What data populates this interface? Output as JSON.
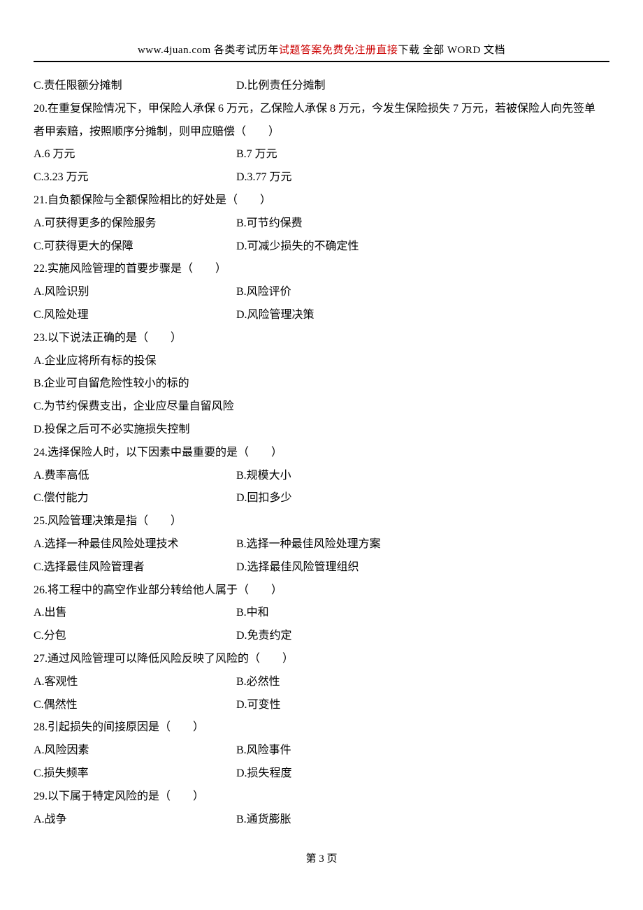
{
  "header": {
    "site": "www.4juan.com",
    "text1": " 各类考试历年",
    "red": "试题答案免费免注册直接",
    "text2": "下载 全部 WORD 文档"
  },
  "content": {
    "q19_opts": {
      "c": "C.责任限额分摊制",
      "d": "D.比例责任分摊制"
    },
    "q20": {
      "stem1": "20.在重复保险情况下，甲保险人承保 6 万元，乙保险人承保 8 万元，今发生保险损失 7 万元，若被保险人向先签单",
      "stem2": "者甲索赔，按照顺序分摊制，则甲应赔偿（　　）",
      "a": "A.6 万元",
      "b": "B.7 万元",
      "c": "C.3.23 万元",
      "d": "D.3.77 万元"
    },
    "q21": {
      "stem": "21.自负额保险与全额保险相比的好处是（　　）",
      "a": "A.可获得更多的保险服务",
      "b": "B.可节约保费",
      "c": "C.可获得更大的保障",
      "d": "D.可减少损失的不确定性"
    },
    "q22": {
      "stem": "22.实施风险管理的首要步骤是（　　）",
      "a": "A.风险识别",
      "b": "B.风险评价",
      "c": "C.风险处理",
      "d": "D.风险管理决策"
    },
    "q23": {
      "stem": "23.以下说法正确的是（　　）",
      "a": "A.企业应将所有标的投保",
      "b": "B.企业可自留危险性较小的标的",
      "c": "C.为节约保费支出，企业应尽量自留风险",
      "d": "D.投保之后可不必实施损失控制"
    },
    "q24": {
      "stem": "24.选择保险人时，以下因素中最重要的是（　　）",
      "a": "A.费率高低",
      "b": "B.规模大小",
      "c": "C.偿付能力",
      "d": "D.回扣多少"
    },
    "q25": {
      "stem": "25.风险管理决策是指（　　）",
      "a": "A.选择一种最佳风险处理技术",
      "b": "B.选择一种最佳风险处理方案",
      "c": "C.选择最佳风险管理者",
      "d": "D.选择最佳风险管理组织"
    },
    "q26": {
      "stem": "26.将工程中的高空作业部分转给他人属于（　　）",
      "a": "A.出售",
      "b": "B.中和",
      "c": "C.分包",
      "d": "D.免责约定"
    },
    "q27": {
      "stem": "27.通过风险管理可以降低风险反映了风险的（　　）",
      "a": "A.客观性",
      "b": "B.必然性",
      "c": "C.偶然性",
      "d": "D.可变性"
    },
    "q28": {
      "stem": "28.引起损失的间接原因是（　　）",
      "a": "A.风险因素",
      "b": "B.风险事件",
      "c": "C.损失频率",
      "d": "D.损失程度"
    },
    "q29": {
      "stem": "29.以下属于特定风险的是（　　）",
      "a": "A.战争",
      "b": "B.通货膨胀"
    }
  },
  "footer": {
    "text": "第 3 页"
  }
}
